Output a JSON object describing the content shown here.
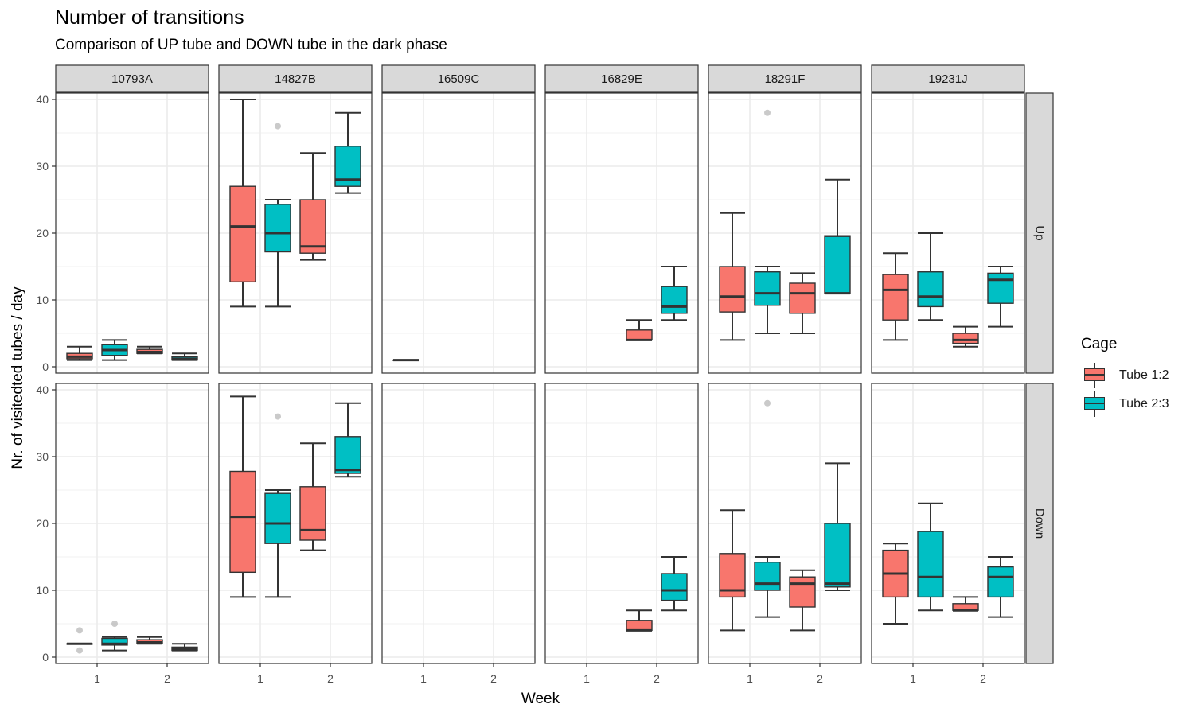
{
  "title": "Number of transitions",
  "subtitle": "Comparison of UP tube and DOWN tube in the dark phase",
  "colors": {
    "tube12": "#F8766D",
    "tube23": "#00BFC4",
    "strip": "#D9D9D9",
    "grid": "#EBEBEB",
    "outlier": "#BDBDBD"
  },
  "chart_data": {
    "type": "boxplot",
    "xlabel": "Week",
    "ylabel": "Nr. of visitedted tubes / day",
    "ylim": [
      0,
      40
    ],
    "y_ticks": [
      0,
      10,
      20,
      30,
      40
    ],
    "x_categories": [
      "1",
      "2"
    ],
    "columns": [
      "10793A",
      "14827B",
      "16509C",
      "16829E",
      "18291F",
      "19231J"
    ],
    "rows": [
      "Up",
      "Down"
    ],
    "legend": {
      "title": "Cage",
      "position": "right",
      "entries": [
        {
          "name": "Tube 1:2",
          "color": "#F8766D"
        },
        {
          "name": "Tube 2:3",
          "color": "#00BFC4"
        }
      ]
    },
    "grid": true,
    "boxes": [
      {
        "panel": "10793A",
        "row": "Up",
        "week": "1",
        "tube": "Tube 1:2",
        "min": 1,
        "q1": 1.2,
        "median": 1.5,
        "q3": 2,
        "max": 3,
        "outliers": []
      },
      {
        "panel": "10793A",
        "row": "Up",
        "week": "1",
        "tube": "Tube 2:3",
        "min": 1,
        "q1": 1.7,
        "median": 2.5,
        "q3": 3.3,
        "max": 4,
        "outliers": []
      },
      {
        "panel": "10793A",
        "row": "Up",
        "week": "2",
        "tube": "Tube 1:2",
        "min": 2,
        "q1": 2,
        "median": 2.2,
        "q3": 2.6,
        "max": 3,
        "outliers": []
      },
      {
        "panel": "10793A",
        "row": "Up",
        "week": "2",
        "tube": "Tube 2:3",
        "min": 1,
        "q1": 1,
        "median": 1.2,
        "q3": 1.5,
        "max": 2,
        "outliers": []
      },
      {
        "panel": "14827B",
        "row": "Up",
        "week": "1",
        "tube": "Tube 1:2",
        "min": 9,
        "q1": 12.7,
        "median": 21,
        "q3": 27,
        "max": 40,
        "outliers": []
      },
      {
        "panel": "14827B",
        "row": "Up",
        "week": "1",
        "tube": "Tube 2:3",
        "min": 9,
        "q1": 17.2,
        "median": 20,
        "q3": 24.3,
        "max": 25,
        "outliers": [
          36
        ]
      },
      {
        "panel": "14827B",
        "row": "Up",
        "week": "2",
        "tube": "Tube 1:2",
        "min": 16,
        "q1": 17,
        "median": 18,
        "q3": 25,
        "max": 32,
        "outliers": []
      },
      {
        "panel": "14827B",
        "row": "Up",
        "week": "2",
        "tube": "Tube 2:3",
        "min": 26,
        "q1": 27,
        "median": 28,
        "q3": 33,
        "max": 38,
        "outliers": []
      },
      {
        "panel": "16509C",
        "row": "Up",
        "week": "1",
        "tube": "Tube 1:2",
        "min": 1,
        "q1": 1,
        "median": 1,
        "q3": 1,
        "max": 1,
        "outliers": []
      },
      {
        "panel": "16829E",
        "row": "Up",
        "week": "2",
        "tube": "Tube 1:2",
        "min": 4,
        "q1": 4,
        "median": 4,
        "q3": 5.5,
        "max": 7,
        "outliers": []
      },
      {
        "panel": "16829E",
        "row": "Up",
        "week": "2",
        "tube": "Tube 2:3",
        "min": 7,
        "q1": 8,
        "median": 9,
        "q3": 12,
        "max": 15,
        "outliers": []
      },
      {
        "panel": "18291F",
        "row": "Up",
        "week": "1",
        "tube": "Tube 1:2",
        "min": 4,
        "q1": 8.2,
        "median": 10.5,
        "q3": 15,
        "max": 23,
        "outliers": []
      },
      {
        "panel": "18291F",
        "row": "Up",
        "week": "1",
        "tube": "Tube 2:3",
        "min": 5,
        "q1": 9.2,
        "median": 11,
        "q3": 14.2,
        "max": 15,
        "outliers": [
          38
        ]
      },
      {
        "panel": "18291F",
        "row": "Up",
        "week": "2",
        "tube": "Tube 1:2",
        "min": 5,
        "q1": 8,
        "median": 11,
        "q3": 12.5,
        "max": 14,
        "outliers": []
      },
      {
        "panel": "18291F",
        "row": "Up",
        "week": "2",
        "tube": "Tube 2:3",
        "min": 11,
        "q1": 11,
        "median": 11,
        "q3": 19.5,
        "max": 28,
        "outliers": []
      },
      {
        "panel": "19231J",
        "row": "Up",
        "week": "1",
        "tube": "Tube 1:2",
        "min": 4,
        "q1": 7,
        "median": 11.5,
        "q3": 13.8,
        "max": 17,
        "outliers": []
      },
      {
        "panel": "19231J",
        "row": "Up",
        "week": "1",
        "tube": "Tube 2:3",
        "min": 7,
        "q1": 9,
        "median": 10.5,
        "q3": 14.2,
        "max": 20,
        "outliers": []
      },
      {
        "panel": "19231J",
        "row": "Up",
        "week": "2",
        "tube": "Tube 1:2",
        "min": 3,
        "q1": 3.5,
        "median": 4,
        "q3": 5,
        "max": 6,
        "outliers": []
      },
      {
        "panel": "19231J",
        "row": "Up",
        "week": "2",
        "tube": "Tube 2:3",
        "min": 6,
        "q1": 9.5,
        "median": 13,
        "q3": 14,
        "max": 15,
        "outliers": []
      },
      {
        "panel": "10793A",
        "row": "Down",
        "week": "1",
        "tube": "Tube 1:2",
        "min": 2,
        "q1": 2,
        "median": 2,
        "q3": 2,
        "max": 2,
        "outliers": [
          1,
          4
        ]
      },
      {
        "panel": "10793A",
        "row": "Down",
        "week": "1",
        "tube": "Tube 2:3",
        "min": 1,
        "q1": 1.8,
        "median": 2,
        "q3": 2.8,
        "max": 3,
        "outliers": [
          5
        ]
      },
      {
        "panel": "10793A",
        "row": "Down",
        "week": "2",
        "tube": "Tube 1:2",
        "min": 2,
        "q1": 2,
        "median": 2.2,
        "q3": 2.6,
        "max": 3,
        "outliers": []
      },
      {
        "panel": "10793A",
        "row": "Down",
        "week": "2",
        "tube": "Tube 2:3",
        "min": 1,
        "q1": 1,
        "median": 1.2,
        "q3": 1.5,
        "max": 2,
        "outliers": []
      },
      {
        "panel": "14827B",
        "row": "Down",
        "week": "1",
        "tube": "Tube 1:2",
        "min": 9,
        "q1": 12.7,
        "median": 21,
        "q3": 27.8,
        "max": 39,
        "outliers": []
      },
      {
        "panel": "14827B",
        "row": "Down",
        "week": "1",
        "tube": "Tube 2:3",
        "min": 9,
        "q1": 17,
        "median": 20,
        "q3": 24.5,
        "max": 25,
        "outliers": [
          36
        ]
      },
      {
        "panel": "14827B",
        "row": "Down",
        "week": "2",
        "tube": "Tube 1:2",
        "min": 16,
        "q1": 17.5,
        "median": 19,
        "q3": 25.5,
        "max": 32,
        "outliers": []
      },
      {
        "panel": "14827B",
        "row": "Down",
        "week": "2",
        "tube": "Tube 2:3",
        "min": 27,
        "q1": 27.5,
        "median": 28,
        "q3": 33,
        "max": 38,
        "outliers": []
      },
      {
        "panel": "16829E",
        "row": "Down",
        "week": "2",
        "tube": "Tube 1:2",
        "min": 4,
        "q1": 4,
        "median": 4,
        "q3": 5.5,
        "max": 7,
        "outliers": []
      },
      {
        "panel": "16829E",
        "row": "Down",
        "week": "2",
        "tube": "Tube 2:3",
        "min": 7,
        "q1": 8.5,
        "median": 10,
        "q3": 12.5,
        "max": 15,
        "outliers": []
      },
      {
        "panel": "18291F",
        "row": "Down",
        "week": "1",
        "tube": "Tube 1:2",
        "min": 4,
        "q1": 9,
        "median": 10,
        "q3": 15.5,
        "max": 22,
        "outliers": []
      },
      {
        "panel": "18291F",
        "row": "Down",
        "week": "1",
        "tube": "Tube 2:3",
        "min": 6,
        "q1": 10,
        "median": 11,
        "q3": 14.2,
        "max": 15,
        "outliers": [
          38
        ]
      },
      {
        "panel": "18291F",
        "row": "Down",
        "week": "2",
        "tube": "Tube 1:2",
        "min": 4,
        "q1": 7.5,
        "median": 11,
        "q3": 12,
        "max": 13,
        "outliers": []
      },
      {
        "panel": "18291F",
        "row": "Down",
        "week": "2",
        "tube": "Tube 2:3",
        "min": 10,
        "q1": 10.5,
        "median": 11,
        "q3": 20,
        "max": 29,
        "outliers": []
      },
      {
        "panel": "19231J",
        "row": "Down",
        "week": "1",
        "tube": "Tube 1:2",
        "min": 5,
        "q1": 9,
        "median": 12.5,
        "q3": 16,
        "max": 17,
        "outliers": []
      },
      {
        "panel": "19231J",
        "row": "Down",
        "week": "1",
        "tube": "Tube 2:3",
        "min": 7,
        "q1": 9,
        "median": 12,
        "q3": 18.8,
        "max": 23,
        "outliers": []
      },
      {
        "panel": "19231J",
        "row": "Down",
        "week": "2",
        "tube": "Tube 1:2",
        "min": 7,
        "q1": 7,
        "median": 7,
        "q3": 8,
        "max": 9,
        "outliers": []
      },
      {
        "panel": "19231J",
        "row": "Down",
        "week": "2",
        "tube": "Tube 2:3",
        "min": 6,
        "q1": 9,
        "median": 12,
        "q3": 13.5,
        "max": 15,
        "outliers": []
      }
    ]
  }
}
